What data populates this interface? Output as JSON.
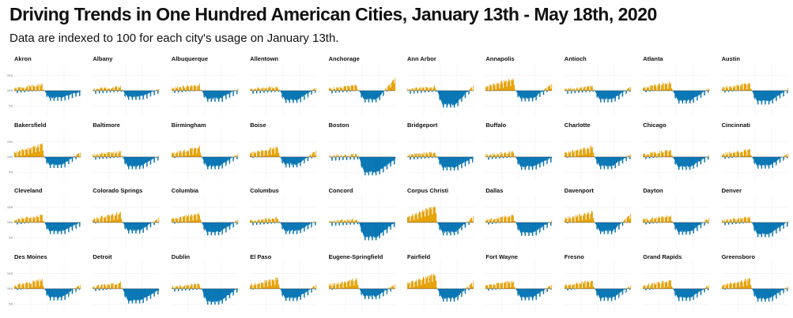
{
  "header": {
    "title": "Driving Trends in One Hundred American Cities, January 13th - May 18th, 2020",
    "subtitle": "Data are indexed to 100 for each city's usage on January 13th."
  },
  "colors": {
    "above_baseline": "#E69F00",
    "below_baseline": "#0072B2",
    "grid": "#ececec",
    "baseline": "#333333"
  },
  "chart_data": {
    "type": "bar",
    "date_range": [
      "January 13th",
      "May 18th, 2020"
    ],
    "baseline": 100,
    "y_ticks": [
      50,
      100,
      150
    ],
    "ylim": [
      20,
      190
    ],
    "grid": true,
    "facets": [
      {
        "city": "Akron",
        "peak": 125,
        "trough": 67,
        "late": 96
      },
      {
        "city": "Albany",
        "peak": 118,
        "trough": 70,
        "late": 103
      },
      {
        "city": "Albuquerque",
        "peak": 125,
        "trough": 64,
        "late": 103
      },
      {
        "city": "Allentown",
        "peak": 118,
        "trough": 60,
        "late": 108
      },
      {
        "city": "Anchorage",
        "peak": 122,
        "trough": 62,
        "late": 140
      },
      {
        "city": "Ann Arbor",
        "peak": 118,
        "trough": 45,
        "late": 115
      },
      {
        "city": "Annapolis",
        "peak": 145,
        "trough": 65,
        "late": 120
      },
      {
        "city": "Antioch",
        "peak": 118,
        "trough": 62,
        "late": 110
      },
      {
        "city": "Atlanta",
        "peak": 132,
        "trough": 58,
        "late": 106
      },
      {
        "city": "Austin",
        "peak": 130,
        "trough": 55,
        "late": 105
      },
      {
        "city": "Bakersfield",
        "peak": 148,
        "trough": 64,
        "late": 114
      },
      {
        "city": "Baltimore",
        "peak": 122,
        "trough": 60,
        "late": 102
      },
      {
        "city": "Birmingham",
        "peak": 138,
        "trough": 60,
        "late": 108
      },
      {
        "city": "Boise",
        "peak": 138,
        "trough": 66,
        "late": 118
      },
      {
        "city": "Boston",
        "peak": 112,
        "trough": 40,
        "late": 90
      },
      {
        "city": "Bridgeport",
        "peak": 120,
        "trough": 56,
        "late": 96
      },
      {
        "city": "Buffalo",
        "peak": 122,
        "trough": 58,
        "late": 96
      },
      {
        "city": "Charlotte",
        "peak": 140,
        "trough": 60,
        "late": 108
      },
      {
        "city": "Chicago",
        "peak": 128,
        "trough": 58,
        "late": 104
      },
      {
        "city": "Cincinnati",
        "peak": 130,
        "trough": 62,
        "late": 110
      },
      {
        "city": "Cleveland",
        "peak": 128,
        "trough": 62,
        "late": 98
      },
      {
        "city": "Colorado Springs",
        "peak": 138,
        "trough": 64,
        "late": 112
      },
      {
        "city": "Columbia",
        "peak": 135,
        "trough": 58,
        "late": 106
      },
      {
        "city": "Columbus",
        "peak": 120,
        "trough": 62,
        "late": 104
      },
      {
        "city": "Concord",
        "peak": 115,
        "trough": 42,
        "late": 100
      },
      {
        "city": "Corpus Christi",
        "peak": 160,
        "trough": 58,
        "late": 118
      },
      {
        "city": "Dallas",
        "peak": 128,
        "trough": 56,
        "late": 104
      },
      {
        "city": "Davenport",
        "peak": 140,
        "trough": 62,
        "late": 125
      },
      {
        "city": "Dayton",
        "peak": 128,
        "trough": 60,
        "late": 112
      },
      {
        "city": "Denver",
        "peak": 122,
        "trough": 52,
        "late": 102
      },
      {
        "city": "Des Moines",
        "peak": 135,
        "trough": 62,
        "late": 112
      },
      {
        "city": "Detroit",
        "peak": 125,
        "trough": 52,
        "late": 94
      },
      {
        "city": "Dublin",
        "peak": 120,
        "trough": 48,
        "late": 100
      },
      {
        "city": "El Paso",
        "peak": 140,
        "trough": 60,
        "late": 110
      },
      {
        "city": "Eugene-Springfield",
        "peak": 138,
        "trough": 66,
        "late": 112
      },
      {
        "city": "Fairfield",
        "peak": 155,
        "trough": 58,
        "late": 120
      },
      {
        "city": "Fort Wayne",
        "peak": 130,
        "trough": 62,
        "late": 112
      },
      {
        "city": "Fresno",
        "peak": 132,
        "trough": 60,
        "late": 110
      },
      {
        "city": "Grand Rapids",
        "peak": 132,
        "trough": 60,
        "late": 110
      },
      {
        "city": "Greensboro",
        "peak": 138,
        "trough": 58,
        "late": 106
      }
    ]
  }
}
